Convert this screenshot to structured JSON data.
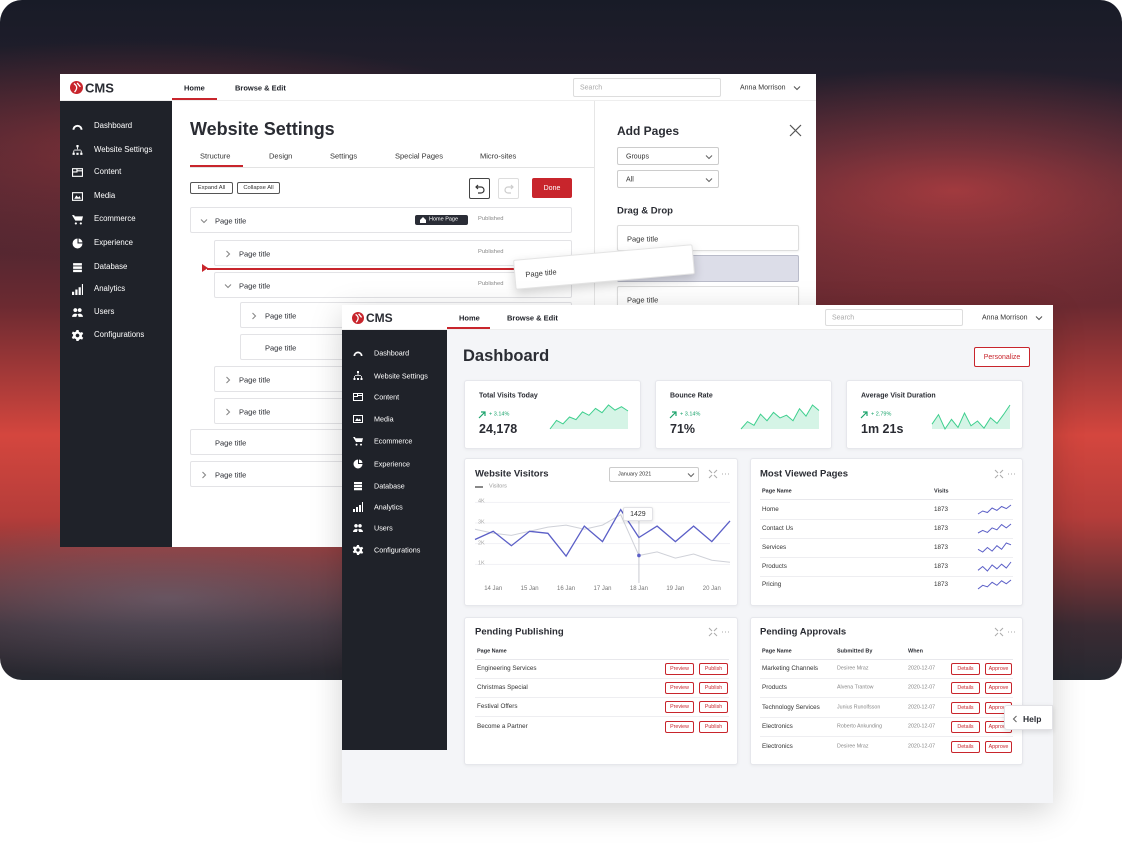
{
  "brand": "CMS",
  "nav": [
    "Home",
    "Browse & Edit"
  ],
  "search": "Search",
  "user": "Anna Morrison",
  "sidebar": [
    "Dashboard",
    "Website Settings",
    "Content",
    "Media",
    "Ecommerce",
    "Experience",
    "Database",
    "Analytics",
    "Users",
    "Configurations"
  ],
  "website_settings": {
    "title": "Website Settings",
    "tabs": [
      "Structure",
      "Design",
      "Settings",
      "Special Pages",
      "Micro-sites"
    ],
    "expand": "Expand All",
    "collapse": "Collapse All",
    "done": "Done",
    "tree": [
      {
        "label": "Page title",
        "badge": "Home Page",
        "status": "Published"
      },
      {
        "label": "Page title",
        "status": "Published"
      },
      {
        "label": "Page title",
        "status": "Published"
      },
      {
        "label": "Page title"
      },
      {
        "label": "Page title"
      },
      {
        "label": "Page title"
      },
      {
        "label": "Page title"
      },
      {
        "label": "Page title"
      },
      {
        "label": "Page title"
      }
    ],
    "dragging": "Page title"
  },
  "add_pages": {
    "title": "Add Pages",
    "filters": [
      "Groups",
      "All"
    ],
    "section": "Drag & Drop",
    "items": [
      "Page title",
      "Page title"
    ]
  },
  "dashboard": {
    "title": "Dashboard",
    "action": "Personalize",
    "stats": [
      {
        "label": "Total Visits Today",
        "change": "+ 3.14%",
        "value": "24,178",
        "trend": [
          3,
          4,
          3.6,
          4.4,
          4.1,
          5,
          4.6,
          5.4,
          4.9,
          5.8,
          5.2,
          5.6,
          5.1
        ]
      },
      {
        "label": "Bounce Rate",
        "change": "+ 3.14%",
        "value": "71%",
        "trend": [
          3,
          3.8,
          3.4,
          4.6,
          3.9,
          4.8,
          4.2,
          4.5,
          3.9,
          5.2,
          4.4,
          5.6,
          5
        ]
      },
      {
        "label": "Average Visit Duration",
        "change": "+ 2.79%",
        "value": "1m 21s",
        "trend": [
          4,
          5.2,
          3.4,
          4.6,
          3.6,
          5.4,
          3.8,
          4.4,
          3.5,
          4.8,
          4.1,
          5.2,
          6.4
        ]
      }
    ],
    "visitors": {
      "type": "line",
      "title": "Website Visitors",
      "period": "January 2021",
      "legend": "Visitors",
      "ylim": [
        0,
        4500
      ],
      "yticks": [
        {
          "value": 1000,
          "label": "1K"
        },
        {
          "value": 2000,
          "label": "2K"
        },
        {
          "value": 3000,
          "label": "3K"
        },
        {
          "value": 4000,
          "label": "4K"
        }
      ],
      "xticks": [
        "14 Jan",
        "15 Jan",
        "16 Jan",
        "17 Jan",
        "18 Jan",
        "19 Jan",
        "20 Jan"
      ],
      "series": [
        {
          "name": "Visitors",
          "color": "#5b5fc7",
          "values": [
            2200,
            2600,
            1900,
            2600,
            2500,
            1400,
            2850,
            2100,
            3650,
            2300,
            2850,
            2100,
            2850,
            2100,
            3100
          ]
        },
        {
          "color": "#cfd1d8",
          "values": [
            2700,
            2500,
            2400,
            2600,
            2800,
            2900,
            2700,
            2900,
            3400,
            1429,
            1600,
            1300,
            1500,
            1200,
            1100
          ]
        }
      ],
      "tooltip": "1429"
    },
    "most_viewed": {
      "title": "Most Viewed Pages",
      "columns": [
        "Page Name",
        "Visits"
      ],
      "rows": [
        {
          "page": "Home",
          "visits": 1873,
          "trend": [
            2,
            3,
            2.5,
            4,
            3.2,
            4.5,
            3.8,
            5
          ]
        },
        {
          "page": "Contact Us",
          "visits": 1873,
          "trend": [
            2,
            2.8,
            2.2,
            3.6,
            3,
            4.6,
            3.6,
            4.8
          ]
        },
        {
          "page": "Services",
          "visits": 1873,
          "trend": [
            3,
            2.4,
            3.4,
            2.6,
            3.8,
            3,
            4.4,
            4
          ]
        },
        {
          "page": "Products",
          "visits": 1873,
          "trend": [
            2.4,
            3.4,
            2.2,
            3.8,
            2.8,
            4,
            3,
            4.6
          ]
        },
        {
          "page": "Pricing",
          "visits": 1873,
          "trend": [
            2,
            3,
            2.6,
            3.8,
            3,
            4.2,
            3.4,
            4.4
          ]
        }
      ]
    },
    "pending_publishing": {
      "title": "Pending Publishing",
      "columns": [
        "Page Name"
      ],
      "actions": [
        "Preview",
        "Publish"
      ],
      "rows": [
        "Engineering Services",
        "Christmas Special",
        "Festival Offers",
        "Become a Partner"
      ]
    },
    "pending_approvals": {
      "title": "Pending Approvals",
      "columns": [
        "Page Name",
        "Submitted By",
        "When"
      ],
      "actions": [
        "Details",
        "Approve"
      ],
      "rows": [
        [
          "Marketing Channels",
          "Desiree Mraz",
          "2020-12-07"
        ],
        [
          "Products",
          "Alvena Trantow",
          "2020-12-07"
        ],
        [
          "Technology Services",
          "Junius Runolfsson",
          "2020-12-07"
        ],
        [
          "Electronics",
          "Roberto Ankunding",
          "2020-12-07"
        ],
        [
          "Electronics",
          "Desiree Mraz",
          "2020-12-07"
        ]
      ]
    }
  },
  "help": "Help"
}
